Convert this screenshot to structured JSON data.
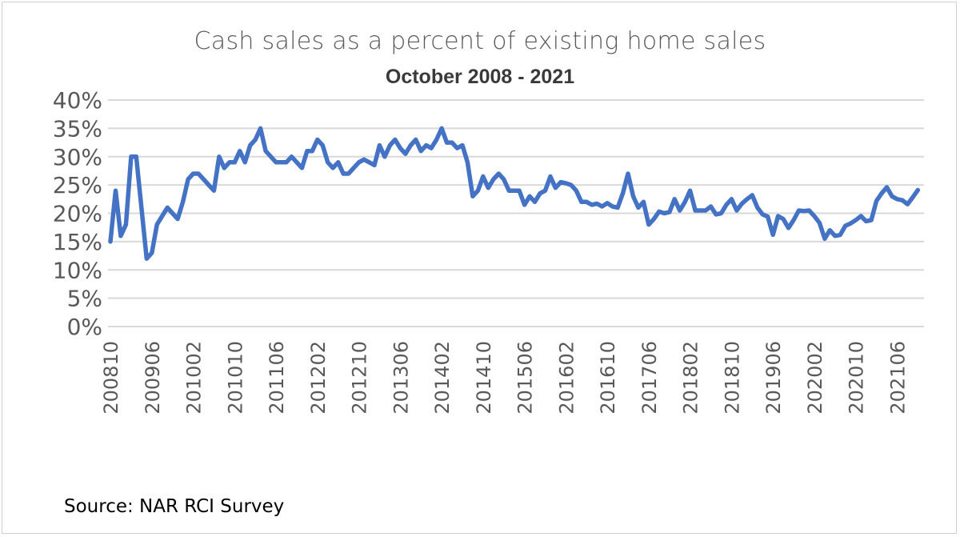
{
  "chart_data": {
    "type": "line",
    "title": "Cash sales as a percent of existing home sales",
    "subtitle": "October 2008 - 2021",
    "source": "Source: NAR RCI Survey",
    "xlabel": "",
    "ylabel": "",
    "ylim": [
      0,
      40
    ],
    "y_ticks": [
      "0%",
      "5%",
      "10%",
      "15%",
      "20%",
      "25%",
      "30%",
      "35%",
      "40%"
    ],
    "x_tick_labels": [
      "200810",
      "200906",
      "201002",
      "201010",
      "201106",
      "201202",
      "201210",
      "201306",
      "201402",
      "201410",
      "201506",
      "201602",
      "201610",
      "201706",
      "201802",
      "201810",
      "201906",
      "202002",
      "202010",
      "202106"
    ],
    "grid": true,
    "line_color": "#4472C4",
    "x": [
      "200810",
      "200811",
      "200812",
      "200901",
      "200902",
      "200903",
      "200904",
      "200905",
      "200906",
      "200907",
      "200908",
      "200909",
      "200910",
      "200911",
      "200912",
      "201001",
      "201002",
      "201003",
      "201004",
      "201005",
      "201006",
      "201007",
      "201008",
      "201009",
      "201010",
      "201011",
      "201012",
      "201101",
      "201102",
      "201103",
      "201104",
      "201105",
      "201106",
      "201107",
      "201108",
      "201109",
      "201110",
      "201111",
      "201112",
      "201201",
      "201202",
      "201203",
      "201204",
      "201205",
      "201206",
      "201207",
      "201208",
      "201209",
      "201210",
      "201211",
      "201212",
      "201301",
      "201302",
      "201303",
      "201304",
      "201305",
      "201306",
      "201307",
      "201308",
      "201309",
      "201310",
      "201311",
      "201312",
      "201401",
      "201402",
      "201403",
      "201404",
      "201405",
      "201406",
      "201407",
      "201408",
      "201409",
      "201410",
      "201411",
      "201412",
      "201501",
      "201502",
      "201503",
      "201504",
      "201505",
      "201506",
      "201507",
      "201508",
      "201509",
      "201510",
      "201511",
      "201512",
      "201601",
      "201602",
      "201603",
      "201604",
      "201605",
      "201606",
      "201607",
      "201608",
      "201609",
      "201610",
      "201611",
      "201612",
      "201701",
      "201702",
      "201703",
      "201704",
      "201705",
      "201706",
      "201707",
      "201708",
      "201709",
      "201710",
      "201711",
      "201712",
      "201801",
      "201802",
      "201803",
      "201804",
      "201805",
      "201806",
      "201807",
      "201808",
      "201809",
      "201810",
      "201811",
      "201812",
      "201901",
      "201902",
      "201903",
      "201904",
      "201905",
      "201906",
      "201907",
      "201908",
      "201909",
      "201910",
      "201911",
      "201912",
      "202001",
      "202002",
      "202003",
      "202004",
      "202005",
      "202006",
      "202007",
      "202008",
      "202009",
      "202010",
      "202011",
      "202012",
      "202101",
      "202102",
      "202103",
      "202104",
      "202105",
      "202106",
      "202107",
      "202108",
      "202109",
      "202110"
    ],
    "series": [
      {
        "values": [
          15,
          24,
          16,
          18,
          30,
          30,
          21,
          12,
          13,
          18,
          19.5,
          21,
          20,
          19,
          22,
          26,
          27,
          27,
          26,
          25,
          24,
          30,
          28,
          29,
          29,
          31,
          29,
          32,
          33,
          35,
          31,
          30,
          29,
          29,
          29,
          30,
          29,
          28,
          31,
          31,
          33,
          32,
          29,
          28,
          29,
          27,
          27,
          28,
          29,
          29.5,
          29,
          28.5,
          32,
          30,
          32,
          33,
          31.5,
          30.5,
          32,
          33,
          31,
          32,
          31.5,
          33,
          35,
          32.5,
          32.5,
          31.5,
          32,
          29,
          23,
          24,
          26.5,
          24.5,
          26,
          27,
          26,
          24,
          24,
          24,
          21.5,
          23,
          22,
          23.5,
          24,
          26.5,
          24.5,
          25.5,
          25.3,
          25,
          24,
          22,
          22,
          21.5,
          21.7,
          21.2,
          21.8,
          21.2,
          21,
          23.5,
          27,
          23,
          21,
          22,
          18,
          19,
          20.3,
          20,
          20.2,
          22.5,
          20.5,
          22,
          24,
          20.5,
          20.5,
          20.5,
          21.2,
          19.8,
          20,
          21.5,
          22.5,
          20.5,
          21.7,
          22.5,
          23.2,
          21,
          19.8,
          19.4,
          16.2,
          19.5,
          19,
          17.4,
          18.8,
          20.5,
          20.4,
          20.5,
          19.5,
          18.3,
          15.5,
          17,
          16,
          16.2,
          17.8,
          18.2,
          18.8,
          19.5,
          18.6,
          18.8,
          22.2,
          23.5,
          24.6,
          23,
          22.5,
          22.3,
          21.6,
          22.8,
          24.1
        ]
      }
    ]
  }
}
